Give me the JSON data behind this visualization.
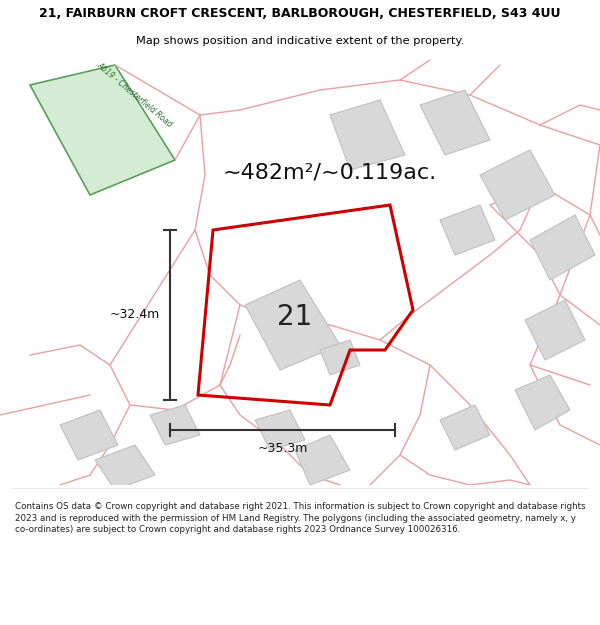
{
  "title_line1": "21, FAIRBURN CROFT CRESCENT, BARLBOROUGH, CHESTERFIELD, S43 4UU",
  "title_line2": "Map shows position and indicative extent of the property.",
  "footer": "Contains OS data © Crown copyright and database right 2021. This information is subject to Crown copyright and database rights 2023 and is reproduced with the permission of HM Land Registry. The polygons (including the associated geometry, namely x, y co-ordinates) are subject to Crown copyright and database rights 2023 Ordnance Survey 100026316.",
  "area_label": "~482m²/~0.119ac.",
  "width_label": "~35.3m",
  "height_label": "~32.4m",
  "plot_number": "21",
  "bg_color": "#ffffff",
  "road_fill": "#d4ecd4",
  "road_stroke": "#5a9e5a",
  "plot_stroke": "#cc0000",
  "building_fill": "#d8d8d8",
  "building_stroke": "#c0c0c0",
  "road_line_color": "#e8a0a0",
  "dim_line_color": "#333333",
  "road_label": "A619 - Chesterfield Road",
  "road_label_color": "#2d6a2d",
  "title_fontsize": 9.0,
  "subtitle_fontsize": 8.2,
  "footer_fontsize": 6.3,
  "area_fontsize": 16,
  "plot_num_fontsize": 20,
  "dim_fontsize": 9
}
